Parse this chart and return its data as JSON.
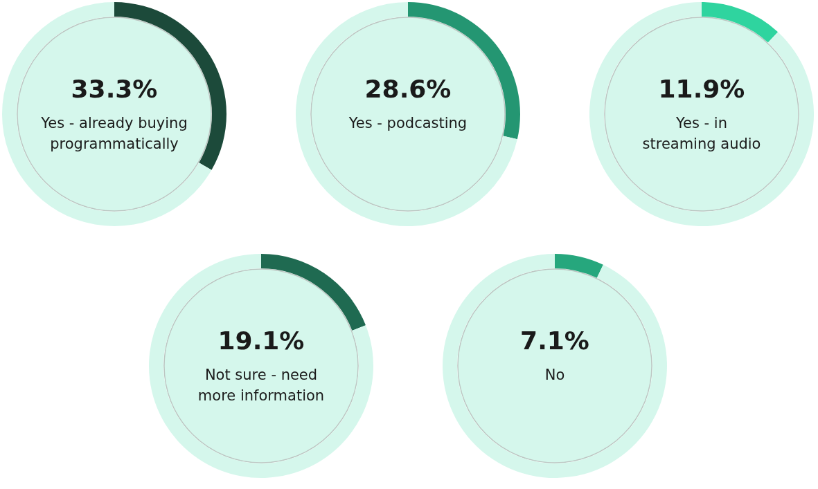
{
  "chart_data": [
    {
      "type": "donut",
      "categories": [
        "Yes - already buying\nprogrammatically",
        null
      ],
      "values": [
        33.3,
        66.7
      ],
      "colors": [
        "#1c4a3a",
        "#d5f7ec"
      ],
      "value_labels": [
        "33.3%",
        null
      ]
    },
    {
      "type": "donut",
      "categories": [
        "Yes - podcasting",
        null
      ],
      "values": [
        28.6,
        71.4
      ],
      "colors": [
        "#249672",
        "#d5f7ec"
      ],
      "value_labels": [
        "28.6%",
        null
      ]
    },
    {
      "type": "donut",
      "categories": [
        "Yes - in\nstreaming audio",
        null
      ],
      "values": [
        11.9,
        88.1
      ],
      "colors": [
        "#2fd49f",
        "#d5f7ec"
      ],
      "value_labels": [
        "11.9%",
        null
      ]
    },
    {
      "type": "donut",
      "categories": [
        "Not sure - need\nmore information",
        null
      ],
      "values": [
        19.1,
        80.9
      ],
      "colors": [
        "#1f6a51",
        "#d5f7ec"
      ],
      "value_labels": [
        "19.1%",
        null
      ]
    },
    {
      "type": "donut",
      "categories": [
        "No",
        null
      ],
      "values": [
        7.1,
        92.9
      ],
      "colors": [
        "#26a77d",
        "#d5f7ec"
      ],
      "value_labels": [
        "7.1%",
        null
      ]
    }
  ]
}
